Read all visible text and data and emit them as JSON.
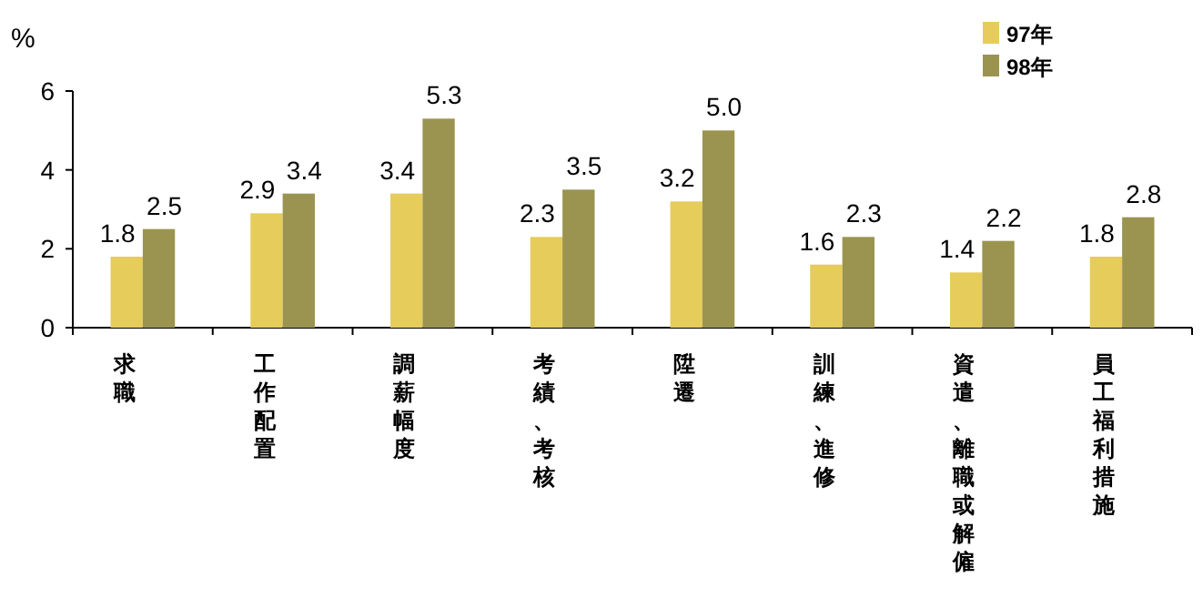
{
  "chart_data": {
    "type": "bar",
    "ylabel": "%",
    "categories": [
      "求職",
      "工作配置",
      "調薪幅度",
      "考績、考核",
      "陞遷",
      "訓練、進修",
      "資遣、離職或解僱",
      "員工福利措施"
    ],
    "series": [
      {
        "name": "97年",
        "color": "#e6cc5a",
        "values": [
          1.8,
          2.9,
          3.4,
          2.3,
          3.2,
          1.6,
          1.4,
          1.8
        ],
        "value_labels": [
          "1.8",
          "2.9",
          "3.4",
          "2.3",
          "3.2",
          "1.6",
          "1.4",
          "1.8"
        ]
      },
      {
        "name": "98年",
        "color": "#9a9450",
        "values": [
          2.5,
          3.4,
          5.3,
          3.5,
          5.0,
          2.3,
          2.2,
          2.8
        ],
        "value_labels": [
          "2.5",
          "3.4",
          "5.3",
          "3.5",
          "5.0",
          "2.3",
          "2.2",
          "2.8"
        ]
      }
    ],
    "ylim": [
      0,
      6
    ],
    "yticks": [
      0,
      2,
      4,
      6
    ],
    "legend": "top right",
    "grid": false
  }
}
